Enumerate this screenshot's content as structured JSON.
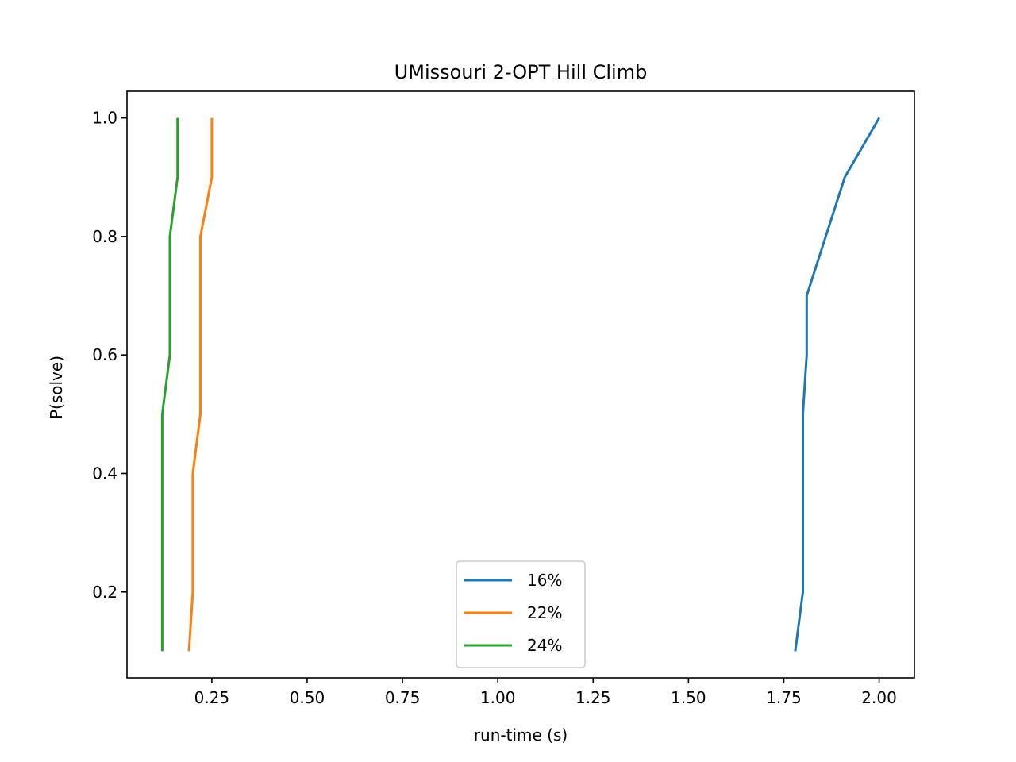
{
  "chart_data": {
    "type": "line",
    "title": "UMissouri 2-OPT Hill Climb",
    "xlabel": "run-time (s)",
    "ylabel": "P(solve)",
    "xlim": [
      0.0275,
      2.0925
    ],
    "ylim": [
      0.055,
      1.045
    ],
    "xticks": [
      0.25,
      0.5,
      0.75,
      1.0,
      1.25,
      1.5,
      1.75,
      2.0
    ],
    "xtick_labels": [
      "0.25",
      "0.50",
      "0.75",
      "1.00",
      "1.25",
      "1.50",
      "1.75",
      "2.00"
    ],
    "yticks": [
      0.2,
      0.4,
      0.6,
      0.8,
      1.0
    ],
    "ytick_labels": [
      "0.2",
      "0.4",
      "0.6",
      "0.8",
      "1.0"
    ],
    "grid": false,
    "legend_position": "bottom-center",
    "series": [
      {
        "name": "16%",
        "color": "#1f77b4",
        "x": [
          1.78,
          1.8,
          1.8,
          1.8,
          1.8,
          1.81,
          1.81,
          1.86,
          1.91,
          2.0
        ],
        "y": [
          0.1,
          0.2,
          0.3,
          0.4,
          0.5,
          0.6,
          0.7,
          0.8,
          0.9,
          1.0
        ]
      },
      {
        "name": "22%",
        "color": "#ff7f0e",
        "x": [
          0.19,
          0.2,
          0.2,
          0.2,
          0.22,
          0.22,
          0.22,
          0.22,
          0.25,
          0.25
        ],
        "y": [
          0.1,
          0.2,
          0.3,
          0.4,
          0.5,
          0.6,
          0.7,
          0.8,
          0.9,
          1.0
        ]
      },
      {
        "name": "24%",
        "color": "#2ca02c",
        "x": [
          0.12,
          0.12,
          0.12,
          0.12,
          0.12,
          0.14,
          0.14,
          0.14,
          0.16,
          0.16
        ],
        "y": [
          0.1,
          0.2,
          0.3,
          0.4,
          0.5,
          0.6,
          0.7,
          0.8,
          0.9,
          1.0
        ]
      }
    ]
  }
}
